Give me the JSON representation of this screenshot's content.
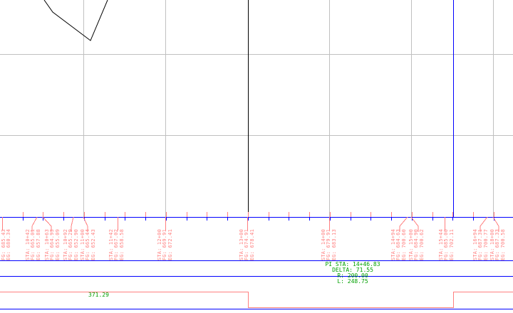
{
  "colors": {
    "grid": "#c0c0c0",
    "axis": "#0000ff",
    "label": "#ff7f7f",
    "curve_text": "#00a000",
    "profile": "#000000"
  },
  "station_labels": [
    {
      "lines": [
        "FG: 685.43",
        "EG: 680.34"
      ]
    },
    {
      "lines": [
        "STA: 10+42",
        "FG: 665.01",
        "EG: 657.88"
      ]
    },
    {
      "lines": [
        "STA: 10+63",
        "FG: 664.93",
        "EG: 655.09"
      ]
    },
    {
      "lines": [
        "STA: 10+92",
        "FG: 665.29",
        "EG: 652.90"
      ]
    },
    {
      "lines": [
        "STA: 11+00",
        "FG: 665.44",
        "EG: 652.43"
      ]
    },
    {
      "lines": [
        "STA: 11+42",
        "FG: 667.02",
        "EG: 658.58"
      ]
    },
    {
      "lines": [
        "STA: 12+00",
        "FG: 669.91",
        "EG: 672.41"
      ]
    },
    {
      "lines": [
        "STA: 13+00",
        "FG: 674.91",
        "EG: 678.41"
      ]
    },
    {
      "lines": [
        "STA: 14+00",
        "FG: 679.91",
        "EG: 683.13"
      ]
    },
    {
      "lines": [
        "STA: 14+94",
        "FG: 684.63",
        "EG: 700.60"
      ]
    },
    {
      "lines": [
        "STA: 15+00",
        "FG: 684.90",
        "EG: 700.62"
      ]
    },
    {
      "lines": [
        "STA: 15+44",
        "FG: 685.00",
        "EG: 702.11"
      ]
    },
    {
      "lines": [
        "STA: 16+94",
        "FG: 687.31",
        "EG: 700.77"
      ]
    },
    {
      "lines": [
        "STA: 18+00",
        "FG: 687.33",
        "EG: 700.58"
      ]
    }
  ],
  "curve": {
    "pi_sta": "PI STA: 14+46.83",
    "delta": "DELTA: 71.55",
    "radius": "R: 200.00",
    "length": "L: 248.75"
  },
  "tangent_length": "371.29"
}
